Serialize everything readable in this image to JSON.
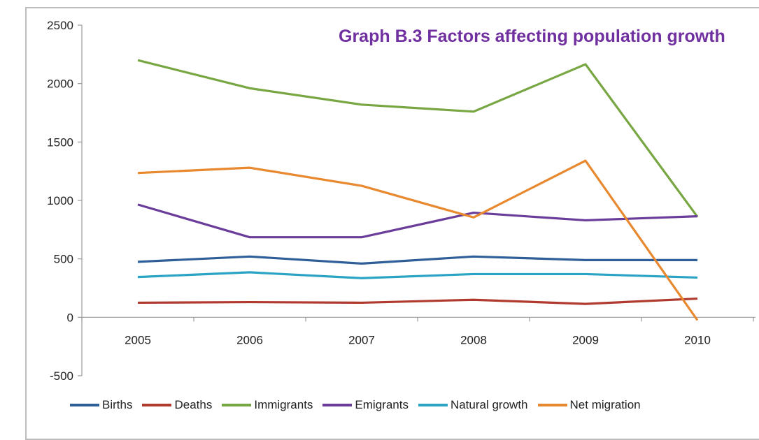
{
  "chart_data": {
    "type": "line",
    "title": "Graph B.3 Factors affecting population growth",
    "categories": [
      "2005",
      "2006",
      "2007",
      "2008",
      "2009",
      "2010"
    ],
    "yticks": [
      "2500",
      "2000",
      "1500",
      "1000",
      "500",
      "0",
      "-500"
    ],
    "ylim": [
      -500,
      2500
    ],
    "grid": false,
    "legend_position": "bottom",
    "series": [
      {
        "name": "Births",
        "color": "#2f5f98",
        "values": [
          475,
          520,
          460,
          520,
          490,
          490
        ]
      },
      {
        "name": "Deaths",
        "color": "#b03a2e",
        "values": [
          125,
          130,
          125,
          150,
          115,
          160
        ]
      },
      {
        "name": "Immigrants",
        "color": "#77a642",
        "values": [
          2200,
          1960,
          1820,
          1760,
          2165,
          860
        ]
      },
      {
        "name": "Emigrants",
        "color": "#6a3d9a",
        "values": [
          965,
          685,
          685,
          895,
          830,
          865
        ]
      },
      {
        "name": "Natural growth",
        "color": "#2aa3c4",
        "values": [
          345,
          385,
          335,
          370,
          370,
          340
        ]
      },
      {
        "name": "Net migration",
        "color": "#e8882f",
        "values": [
          1235,
          1280,
          1125,
          855,
          1340,
          -25
        ]
      }
    ]
  }
}
